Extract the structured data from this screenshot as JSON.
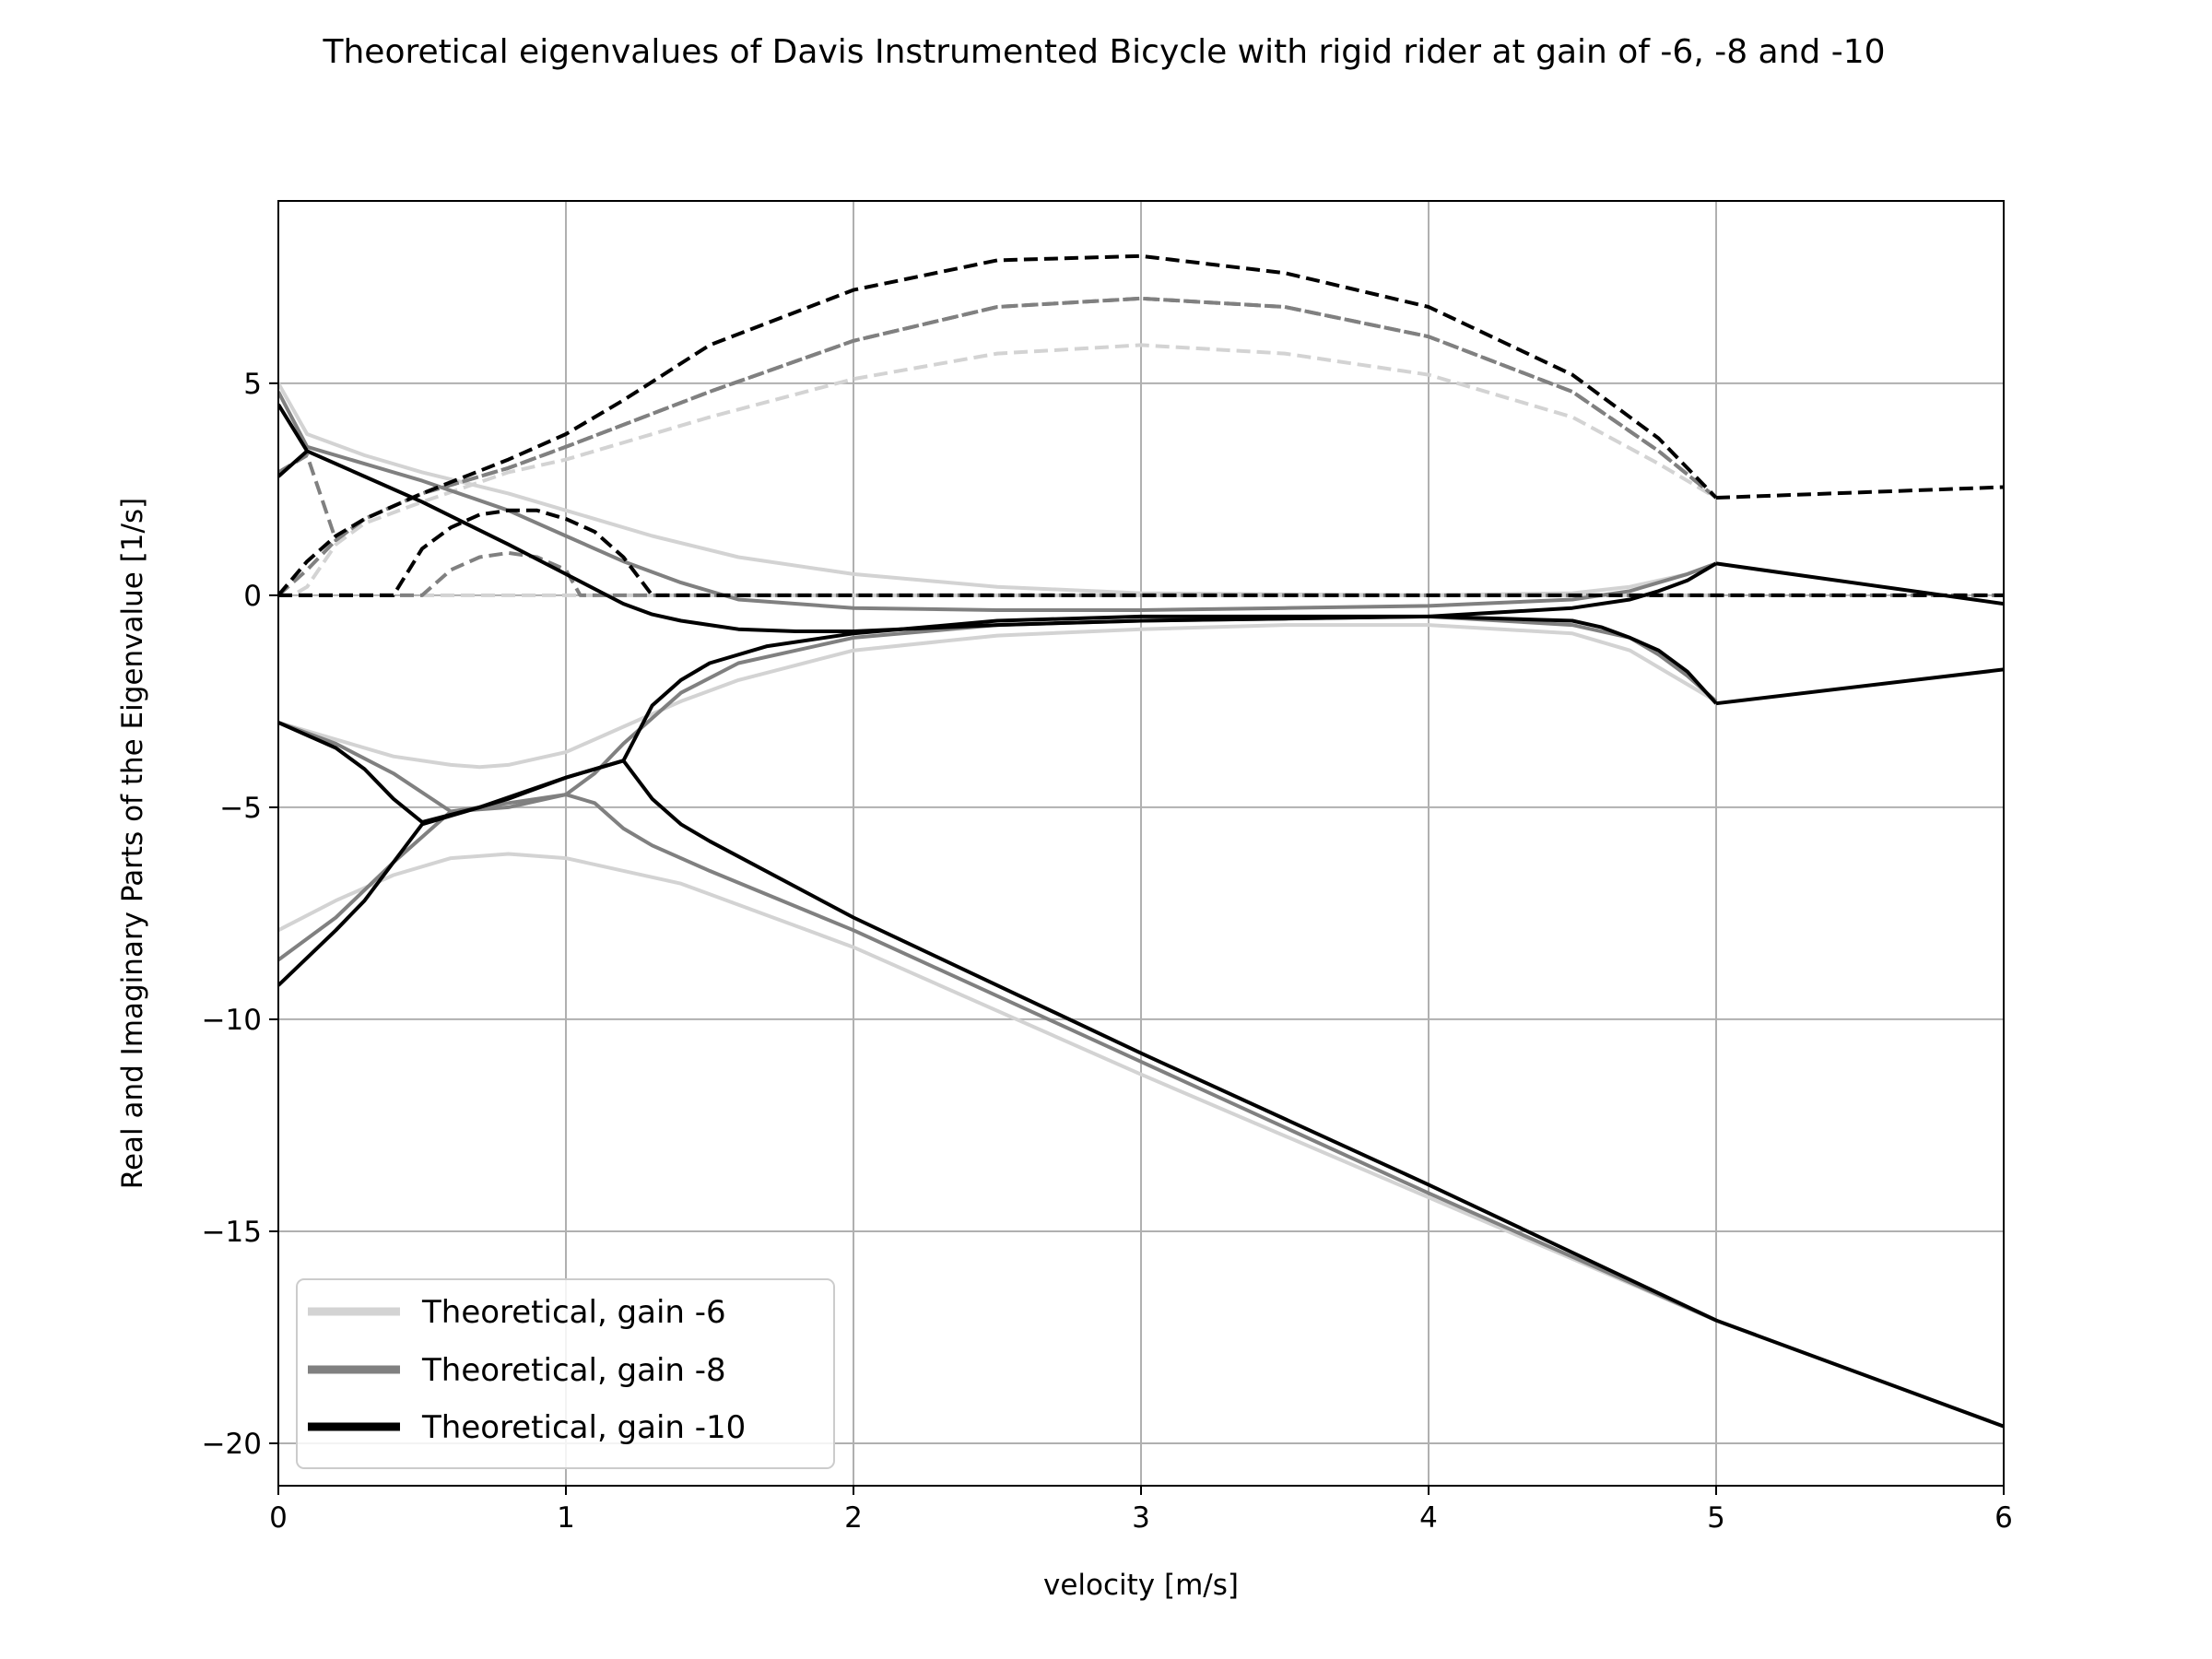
{
  "chart_data": {
    "type": "line",
    "title": "Theoretical eigenvalues of Davis Instrumented Bicycle with rigid rider at gain of -6, -8 and -10",
    "xlabel": "velocity [m/s]",
    "ylabel": "Real and Imaginary Parts of the Eigenvalue [1/s]",
    "xlim": [
      0,
      6
    ],
    "ylim": [
      -21,
      9.3
    ],
    "xticks": [
      0,
      1,
      2,
      3,
      4,
      5,
      6
    ],
    "xtick_labels": [
      "0",
      "1",
      "2",
      "3",
      "4",
      "5",
      "6"
    ],
    "yticks": [
      5,
      0,
      -5,
      -10,
      -15,
      -20
    ],
    "ytick_labels": [
      "5",
      "0",
      "−5",
      "−10",
      "−15",
      "−20"
    ],
    "grid": true,
    "legend_position": "lower-left",
    "legend": [
      {
        "label": "Theoretical, gain -6",
        "color": "#d3d3d3"
      },
      {
        "label": "Theoretical, gain -8",
        "color": "#808080"
      },
      {
        "label": "Theoretical, gain -10",
        "color": "#000000"
      }
    ],
    "series": [
      {
        "name": "Theoretical, gain -6",
        "color": "#d3d3d3",
        "curves": [
          {
            "style": "solid",
            "x": [
              0,
              0.1,
              0.3,
              0.5,
              0.8,
              1.0,
              1.3,
              1.6,
              2.0,
              2.5,
              3.0,
              3.5,
              4.0,
              4.5,
              4.7,
              4.9,
              5.0
            ],
            "y": [
              5.0,
              3.8,
              3.3,
              2.9,
              2.4,
              2.0,
              1.4,
              0.9,
              0.5,
              0.2,
              0.05,
              0.02,
              0.0,
              0.05,
              0.2,
              0.5,
              0.75
            ]
          },
          {
            "style": "solid",
            "x": [
              0,
              0.2,
              0.4,
              0.6,
              0.7,
              0.8,
              1.0,
              1.2,
              1.4,
              1.6,
              2.0,
              2.5,
              3.0,
              3.5,
              4.0,
              4.5,
              4.7,
              4.8,
              4.9,
              5.0
            ],
            "y": [
              -3.0,
              -3.4,
              -3.8,
              -4.0,
              -4.05,
              -4.0,
              -3.7,
              -3.1,
              -2.5,
              -2.0,
              -1.3,
              -0.95,
              -0.8,
              -0.7,
              -0.7,
              -0.9,
              -1.3,
              -1.7,
              -2.1,
              -2.5
            ]
          },
          {
            "style": "solid",
            "x": [
              0,
              0.2,
              0.4,
              0.6,
              0.8,
              1.0,
              1.4,
              2.0,
              3.0,
              4.0,
              5.0
            ],
            "y": [
              -7.9,
              -7.2,
              -6.6,
              -6.2,
              -6.1,
              -6.2,
              -6.8,
              -8.3,
              -11.3,
              -14.2,
              -17.1
            ]
          },
          {
            "style": "dashed",
            "x": [
              0,
              0.05,
              0.1,
              0.2,
              0.3,
              0.5,
              0.8,
              1.0,
              1.5,
              2.0,
              2.5,
              3.0,
              3.5,
              4.0,
              4.5,
              4.8,
              5.0
            ],
            "y": [
              0,
              0,
              0.2,
              1.2,
              1.7,
              2.2,
              2.9,
              3.2,
              4.2,
              5.1,
              5.7,
              5.9,
              5.7,
              5.2,
              4.2,
              3.1,
              2.3
            ]
          },
          {
            "style": "dashed",
            "x": [
              0,
              5.0
            ],
            "y": [
              0,
              0
            ]
          }
        ]
      },
      {
        "name": "Theoretical, gain -8",
        "color": "#808080",
        "curves": [
          {
            "style": "solid",
            "x": [
              0,
              0.1,
              0.3,
              0.5,
              0.8,
              1.0,
              1.2,
              1.4,
              1.6,
              2.0,
              2.5,
              3.0,
              3.5,
              4.0,
              4.5,
              4.7,
              4.8,
              4.9,
              5.0
            ],
            "y": [
              4.8,
              3.5,
              3.1,
              2.7,
              2.0,
              1.4,
              0.8,
              0.3,
              -0.1,
              -0.3,
              -0.35,
              -0.35,
              -0.3,
              -0.25,
              -0.1,
              0.1,
              0.3,
              0.5,
              0.75
            ]
          },
          {
            "style": "solid",
            "x": [
              0,
              0.2,
              0.4,
              0.6,
              0.8,
              1.0,
              1.1,
              1.2,
              1.4,
              1.6,
              2.0,
              2.5,
              3.0,
              3.5,
              4.0,
              4.5,
              4.7,
              4.8,
              4.9,
              5.0
            ],
            "y": [
              -3.0,
              -3.5,
              -4.2,
              -5.1,
              -5.0,
              -4.7,
              -4.2,
              -3.5,
              -2.3,
              -1.6,
              -1.0,
              -0.7,
              -0.6,
              -0.55,
              -0.5,
              -0.7,
              -1.0,
              -1.4,
              -1.9,
              -2.5
            ]
          },
          {
            "style": "solid",
            "x": [
              0,
              0.2,
              0.4,
              0.6,
              0.8,
              1.0,
              1.1,
              1.2,
              1.3,
              1.5,
              2.0,
              3.0,
              4.0,
              5.0
            ],
            "y": [
              -8.6,
              -7.6,
              -6.3,
              -5.1,
              -4.9,
              -4.7,
              -4.9,
              -5.5,
              -5.9,
              -6.5,
              -7.9,
              -11.0,
              -14.1,
              -17.1
            ]
          },
          {
            "style": "dashed",
            "x": [
              0,
              0.1,
              0.2,
              0.3,
              0.5,
              0.8,
              1.0,
              1.5,
              2.0,
              2.5,
              3.0,
              3.5,
              4.0,
              4.5,
              4.8,
              5.0
            ],
            "y": [
              2.9,
              3.3,
              1.3,
              1.8,
              2.4,
              3.0,
              3.5,
              4.8,
              6.0,
              6.8,
              7.0,
              6.8,
              6.1,
              4.8,
              3.4,
              2.3
            ]
          },
          {
            "style": "dashed",
            "x": [
              0,
              0.1,
              0.2,
              0.3,
              0.5,
              0.8,
              1.0,
              1.5,
              2.0,
              2.5,
              3.0,
              3.5,
              4.0,
              4.5,
              4.8,
              5.0
            ],
            "y": [
              0,
              0.6,
              1.3,
              1.8,
              2.4,
              3.0,
              3.5,
              4.8,
              6.0,
              6.8,
              7.0,
              6.8,
              6.1,
              4.8,
              3.4,
              2.3
            ]
          },
          {
            "style": "dashed",
            "x": [
              0,
              0.5,
              0.6,
              0.7,
              0.8,
              0.9,
              1.0,
              1.05,
              6.0
            ],
            "y": [
              0,
              0,
              0.6,
              0.9,
              1.0,
              0.9,
              0.6,
              0,
              0
            ]
          }
        ]
      },
      {
        "name": "Theoretical, gain -10",
        "color": "#000000",
        "curves": [
          {
            "style": "solid",
            "x": [
              0,
              0.1,
              0.3,
              0.5,
              0.8,
              1.0,
              1.1,
              1.2,
              1.3,
              1.4,
              1.6,
              1.8,
              2.0,
              2.5,
              3.0,
              3.5,
              4.0,
              4.5,
              4.7,
              4.8,
              4.9,
              5.0
            ],
            "y": [
              4.5,
              3.4,
              2.8,
              2.2,
              1.2,
              0.5,
              0.15,
              -0.2,
              -0.45,
              -0.6,
              -0.8,
              -0.85,
              -0.85,
              -0.7,
              -0.6,
              -0.55,
              -0.5,
              -0.3,
              -0.1,
              0.1,
              0.35,
              0.75
            ]
          },
          {
            "style": "solid",
            "x": [
              5.0,
              6.0
            ],
            "y": [
              0.75,
              -0.2
            ]
          },
          {
            "style": "solid",
            "x": [
              0,
              0.2,
              0.3,
              0.4,
              0.5,
              0.7,
              1.0,
              1.2,
              1.3,
              1.4,
              1.5,
              1.7,
              2.0,
              2.5,
              3.0,
              3.5,
              4.0,
              4.5,
              4.6,
              4.7,
              4.8,
              4.9,
              5.0
            ],
            "y": [
              -3.0,
              -3.6,
              -4.1,
              -4.8,
              -5.35,
              -5.0,
              -4.3,
              -3.9,
              -2.6,
              -2.0,
              -1.6,
              -1.2,
              -0.9,
              -0.6,
              -0.5,
              -0.5,
              -0.5,
              -0.6,
              -0.75,
              -1.0,
              -1.3,
              -1.8,
              -2.55
            ]
          },
          {
            "style": "solid",
            "x": [
              5.0,
              6.0
            ],
            "y": [
              -2.55,
              -1.75
            ]
          },
          {
            "style": "solid",
            "x": [
              0,
              0.2,
              0.3,
              0.4,
              0.5,
              0.6,
              0.8,
              1.0,
              1.2,
              1.3,
              1.4,
              1.5,
              2.0,
              3.0,
              4.0,
              5.0,
              6.0
            ],
            "y": [
              -9.2,
              -7.9,
              -7.2,
              -6.3,
              -5.4,
              -5.2,
              -4.8,
              -4.3,
              -3.9,
              -4.8,
              -5.4,
              -5.8,
              -7.6,
              -10.8,
              -13.9,
              -17.1,
              -19.6
            ]
          },
          {
            "style": "dashed",
            "x": [
              0,
              0.1,
              0.2,
              0.3,
              0.5,
              0.8,
              1.0,
              1.2,
              1.5,
              2.0,
              2.5,
              3.0,
              3.5,
              4.0,
              4.5,
              4.8,
              5.0
            ],
            "y": [
              0,
              0.8,
              1.4,
              1.8,
              2.4,
              3.2,
              3.8,
              4.6,
              5.9,
              7.2,
              7.9,
              8.0,
              7.6,
              6.8,
              5.2,
              3.7,
              2.3
            ]
          },
          {
            "style": "dashed",
            "x": [
              5.0,
              6.0
            ],
            "y": [
              2.3,
              2.55
            ]
          },
          {
            "style": "dashed",
            "x": [
              0,
              0.4,
              0.5,
              0.6,
              0.7,
              0.8,
              0.9,
              1.0,
              1.1,
              1.2,
              1.3,
              6.0
            ],
            "y": [
              0,
              0,
              1.1,
              1.6,
              1.9,
              2.0,
              2.0,
              1.8,
              1.5,
              0.9,
              0,
              0
            ]
          },
          {
            "style": "solid",
            "x": [
              0,
              0.1
            ],
            "y": [
              2.8,
              3.4
            ]
          }
        ]
      }
    ]
  }
}
